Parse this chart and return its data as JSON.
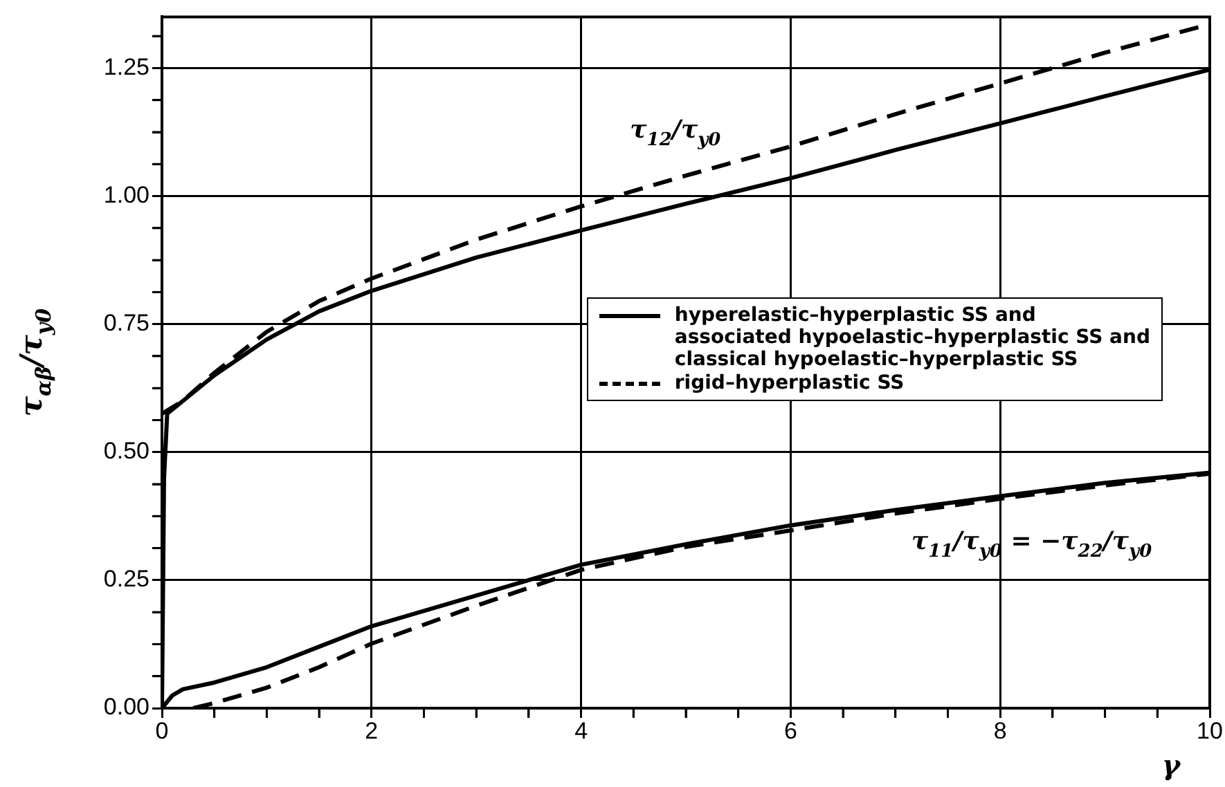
{
  "chart_data": {
    "type": "line",
    "xlabel": "γ",
    "ylabel": "τ$_{αβ}$/τ$_{y0}$",
    "xlim": [
      0,
      10
    ],
    "ylim": [
      0,
      1.35
    ],
    "xticks": [
      0,
      {
        "value": 0.5,
        "label": null
      },
      {
        "value": 1,
        "label": null
      },
      {
        "value": 1.5,
        "label": null
      },
      2,
      {
        "value": 2.5,
        "label": null
      },
      {
        "value": 3,
        "label": null
      },
      {
        "value": 3.5,
        "label": null
      },
      4,
      {
        "value": 4.5,
        "label": null
      },
      {
        "value": 5,
        "label": null
      },
      {
        "value": 5.5,
        "label": null
      },
      6,
      {
        "value": 6.5,
        "label": null
      },
      {
        "value": 7,
        "label": null
      },
      {
        "value": 7.5,
        "label": null
      },
      8,
      {
        "value": 8.5,
        "label": null
      },
      {
        "value": 9,
        "label": null
      },
      {
        "value": 9.5,
        "label": null
      },
      10
    ],
    "yticks": [
      {
        "value": 0,
        "label": "0.00"
      },
      {
        "value": 0.0625,
        "label": null
      },
      {
        "value": 0.125,
        "label": null
      },
      {
        "value": 0.1875,
        "label": null
      },
      0.25,
      {
        "value": 0.3125,
        "label": null
      },
      {
        "value": 0.375,
        "label": null
      },
      {
        "value": 0.4375,
        "label": null
      },
      {
        "value": 0.5,
        "label": "0.50"
      },
      {
        "value": 0.5625,
        "label": null
      },
      {
        "value": 0.625,
        "label": null
      },
      {
        "value": 0.6875,
        "label": null
      },
      0.75,
      {
        "value": 0.8125,
        "label": null
      },
      {
        "value": 0.875,
        "label": null
      },
      {
        "value": 0.9375,
        "label": null
      },
      {
        "value": 1,
        "label": "1.00"
      },
      {
        "value": 1.0625,
        "label": null
      },
      {
        "value": 1.125,
        "label": null
      },
      {
        "value": 1.1875,
        "label": null
      },
      1.25,
      {
        "value": 1.3125,
        "label": null
      }
    ],
    "grid": true,
    "legend": "center right",
    "marker": "none",
    "annotations": [
      "τ$_{12}$/τ$_{y0}$",
      "τ$_{11}$/τ$_{y0}$ = −τ$_{22}$/τ$_{y0}$"
    ],
    "series": [
      {
        "name": "hyperelastic–hyperplastic SS and\nassociated hypoelastic–hyperplastic SS and\nclassical hypoelastic–hyperplastic SS",
        "color": "#000000",
        "line_style": "solid",
        "x": [
          0,
          0.02,
          0.05,
          0.2,
          0.5,
          1,
          1.5,
          2,
          3,
          4,
          5,
          6,
          7,
          8,
          9,
          10
        ],
        "values": [
          0,
          0.45,
          0.575,
          0.6,
          0.65,
          0.72,
          0.775,
          0.815,
          0.88,
          0.933,
          0.985,
          1.035,
          1.09,
          1.142,
          1.195,
          1.247
        ]
      },
      {
        "name": "rigid–hyperplastic SS",
        "color": "#000000",
        "line_style": "dashed",
        "x": [
          0,
          0.2,
          0.5,
          1,
          1.5,
          2,
          3,
          4,
          5,
          6,
          7,
          8,
          9,
          10
        ],
        "values": [
          0.575,
          0.6,
          0.655,
          0.735,
          0.795,
          0.839,
          0.915,
          0.98,
          1.04,
          1.097,
          1.16,
          1.22,
          1.28,
          1.336
        ]
      },
      {
        "color": "#000000",
        "line_style": "solid",
        "x": [
          0,
          0.1,
          0.2,
          0.5,
          1,
          1.5,
          2,
          3,
          4,
          5,
          6,
          7,
          8,
          9,
          10
        ],
        "values": [
          0,
          0.025,
          0.037,
          0.05,
          0.08,
          0.12,
          0.16,
          0.22,
          0.28,
          0.32,
          0.357,
          0.387,
          0.414,
          0.44,
          0.46
        ]
      },
      {
        "color": "#000000",
        "line_style": "dashed",
        "x": [
          0.3,
          0.5,
          1,
          1.5,
          2,
          3,
          4,
          5,
          6,
          7,
          8,
          9,
          10
        ],
        "values": [
          0,
          0.01,
          0.04,
          0.08,
          0.126,
          0.2,
          0.27,
          0.315,
          0.347,
          0.38,
          0.409,
          0.435,
          0.458
        ]
      }
    ]
  }
}
